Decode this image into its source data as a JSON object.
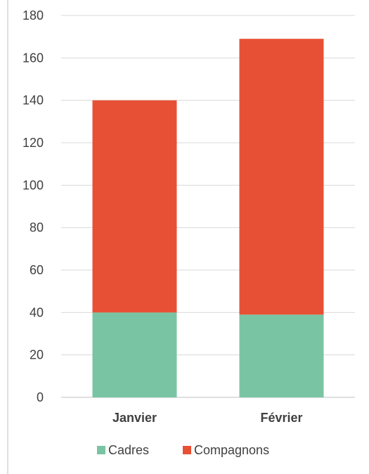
{
  "chart_data": {
    "type": "bar",
    "stacked": true,
    "categories": [
      "Janvier",
      "Février"
    ],
    "series": [
      {
        "name": "Cadres",
        "values": [
          40,
          39
        ],
        "color": "#79C4A3"
      },
      {
        "name": "Compagnons",
        "values": [
          100,
          130
        ],
        "color": "#E85035"
      }
    ],
    "ylim": [
      0,
      180
    ],
    "yticks": [
      0,
      20,
      40,
      60,
      80,
      100,
      120,
      140,
      160,
      180
    ],
    "grid": true,
    "legend_position": "bottom"
  }
}
